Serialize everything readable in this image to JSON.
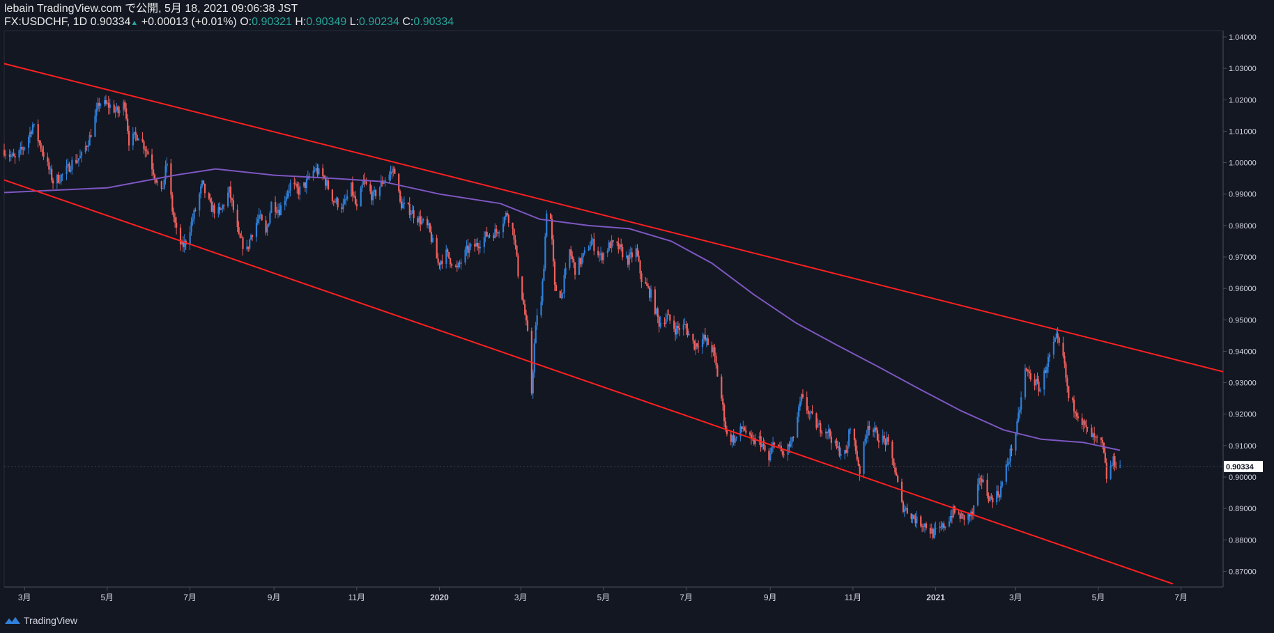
{
  "header": {
    "publish_line": "lebain TradingView.com で公開, 5月 18, 2021 09:06:38 JST",
    "symbol": "FX:USDCHF, 1D",
    "last": "0.90334",
    "change": "+0.00013 (+0.01%)",
    "o_label": "O:",
    "o_value": "0.90321",
    "h_label": "H:",
    "h_value": "0.90349",
    "l_label": "L:",
    "l_value": "0.90234",
    "c_label": "C:",
    "c_value": "0.90334"
  },
  "footer": {
    "brand": "TradingView"
  },
  "colors": {
    "background": "#131722",
    "up": "#2f80d8",
    "down": "#f0605c",
    "trendline": "#ff2020",
    "ma": "#7e57c2",
    "axis_text": "#d1d4dc"
  },
  "chart_data": {
    "type": "candlestick",
    "symbol": "FX:USDCHF",
    "timeframe": "1D",
    "x_domain": [
      "2019-02-14",
      "2021-08-01"
    ],
    "ylim": [
      0.865,
      1.042
    ],
    "y_ticks": [
      1.04,
      1.03,
      1.02,
      1.01,
      1.0,
      0.99,
      0.98,
      0.97,
      0.96,
      0.95,
      0.94,
      0.93,
      0.92,
      0.91,
      0.9,
      0.89,
      0.88,
      0.87
    ],
    "y_tick_labels": [
      "1.04000",
      "1.03000",
      "1.02000",
      "1.01000",
      "1.00000",
      "0.99000",
      "0.98000",
      "0.97000",
      "0.96000",
      "0.95000",
      "0.94000",
      "0.93000",
      "0.92000",
      "0.91000",
      "0.90000",
      "0.89000",
      "0.88000",
      "0.87000"
    ],
    "x_ticks": [
      {
        "label": "3月",
        "date": "2019-03-01"
      },
      {
        "label": "5月",
        "date": "2019-05-01"
      },
      {
        "label": "7月",
        "date": "2019-07-01"
      },
      {
        "label": "9月",
        "date": "2019-09-01"
      },
      {
        "label": "11月",
        "date": "2019-11-01"
      },
      {
        "label": "2020",
        "date": "2020-01-01"
      },
      {
        "label": "3月",
        "date": "2020-03-01"
      },
      {
        "label": "5月",
        "date": "2020-05-01"
      },
      {
        "label": "7月",
        "date": "2020-07-01"
      },
      {
        "label": "9月",
        "date": "2020-09-01"
      },
      {
        "label": "11月",
        "date": "2020-11-01"
      },
      {
        "label": "2021",
        "date": "2021-01-01"
      },
      {
        "label": "3月",
        "date": "2021-03-01"
      },
      {
        "label": "5月",
        "date": "2021-05-01"
      },
      {
        "label": "7月",
        "date": "2021-07-01"
      }
    ],
    "last_price_label": "0.90334",
    "last_price": 0.90334,
    "close_path": [
      [
        "2019-02-14",
        1.004
      ],
      [
        "2019-02-22",
        1.001
      ],
      [
        "2019-03-02",
        1.006
      ],
      [
        "2019-03-07",
        1.012
      ],
      [
        "2019-03-14",
        1.004
      ],
      [
        "2019-03-22",
        0.994
      ],
      [
        "2019-03-29",
        0.996
      ],
      [
        "2019-04-05",
        1.0
      ],
      [
        "2019-04-12",
        1.002
      ],
      [
        "2019-04-18",
        1.008
      ],
      [
        "2019-04-25",
        1.019
      ],
      [
        "2019-05-03",
        1.018
      ],
      [
        "2019-05-09",
        1.016
      ],
      [
        "2019-05-14",
        1.019
      ],
      [
        "2019-05-17",
        1.007
      ],
      [
        "2019-05-24",
        1.009
      ],
      [
        "2019-05-31",
        1.003
      ],
      [
        "2019-06-05",
        0.996
      ],
      [
        "2019-06-10",
        0.99
      ],
      [
        "2019-06-14",
        1.0
      ],
      [
        "2019-06-18",
        0.985
      ],
      [
        "2019-06-21",
        0.978
      ],
      [
        "2019-06-25",
        0.973
      ],
      [
        "2019-06-28",
        0.975
      ],
      [
        "2019-07-05",
        0.985
      ],
      [
        "2019-07-10",
        0.993
      ],
      [
        "2019-07-16",
        0.986
      ],
      [
        "2019-07-23",
        0.984
      ],
      [
        "2019-07-30",
        0.991
      ],
      [
        "2019-08-02",
        0.985
      ],
      [
        "2019-08-06",
        0.976
      ],
      [
        "2019-08-12",
        0.972
      ],
      [
        "2019-08-15",
        0.977
      ],
      [
        "2019-08-21",
        0.983
      ],
      [
        "2019-08-26",
        0.977
      ],
      [
        "2019-08-30",
        0.987
      ],
      [
        "2019-09-05",
        0.985
      ],
      [
        "2019-09-13",
        0.993
      ],
      [
        "2019-09-19",
        0.991
      ],
      [
        "2019-09-24",
        0.993
      ],
      [
        "2019-10-01",
        0.998
      ],
      [
        "2019-10-08",
        0.995
      ],
      [
        "2019-10-15",
        0.988
      ],
      [
        "2019-10-22",
        0.986
      ],
      [
        "2019-10-28",
        0.992
      ],
      [
        "2019-11-01",
        0.985
      ],
      [
        "2019-11-06",
        0.994
      ],
      [
        "2019-11-13",
        0.989
      ],
      [
        "2019-11-20",
        0.994
      ],
      [
        "2019-11-29",
        0.998
      ],
      [
        "2019-12-03",
        0.987
      ],
      [
        "2019-12-10",
        0.985
      ],
      [
        "2019-12-17",
        0.982
      ],
      [
        "2019-12-24",
        0.979
      ],
      [
        "2019-12-31",
        0.968
      ],
      [
        "2020-01-06",
        0.971
      ],
      [
        "2020-01-14",
        0.966
      ],
      [
        "2020-01-21",
        0.972
      ],
      [
        "2020-01-29",
        0.974
      ],
      [
        "2020-02-05",
        0.977
      ],
      [
        "2020-02-12",
        0.978
      ],
      [
        "2020-02-20",
        0.984
      ],
      [
        "2020-02-25",
        0.977
      ],
      [
        "2020-02-28",
        0.965
      ],
      [
        "2020-03-03",
        0.955
      ],
      [
        "2020-03-06",
        0.945
      ],
      [
        "2020-03-09",
        0.927
      ],
      [
        "2020-03-11",
        0.942
      ],
      [
        "2020-03-13",
        0.952
      ],
      [
        "2020-03-16",
        0.955
      ],
      [
        "2020-03-18",
        0.968
      ],
      [
        "2020-03-20",
        0.985
      ],
      [
        "2020-03-23",
        0.982
      ],
      [
        "2020-03-26",
        0.96
      ],
      [
        "2020-03-31",
        0.958
      ],
      [
        "2020-04-06",
        0.972
      ],
      [
        "2020-04-10",
        0.966
      ],
      [
        "2020-04-16",
        0.97
      ],
      [
        "2020-04-22",
        0.975
      ],
      [
        "2020-04-29",
        0.97
      ],
      [
        "2020-05-06",
        0.974
      ],
      [
        "2020-05-12",
        0.973
      ],
      [
        "2020-05-19",
        0.969
      ],
      [
        "2020-05-25",
        0.972
      ],
      [
        "2020-05-29",
        0.963
      ],
      [
        "2020-06-05",
        0.958
      ],
      [
        "2020-06-11",
        0.949
      ],
      [
        "2020-06-17",
        0.951
      ],
      [
        "2020-06-23",
        0.947
      ],
      [
        "2020-06-30",
        0.948
      ],
      [
        "2020-07-07",
        0.942
      ],
      [
        "2020-07-14",
        0.944
      ],
      [
        "2020-07-21",
        0.94
      ],
      [
        "2020-07-27",
        0.925
      ],
      [
        "2020-07-31",
        0.913
      ],
      [
        "2020-08-06",
        0.912
      ],
      [
        "2020-08-12",
        0.916
      ],
      [
        "2020-08-18",
        0.911
      ],
      [
        "2020-08-24",
        0.912
      ],
      [
        "2020-08-31",
        0.905
      ],
      [
        "2020-09-04",
        0.912
      ],
      [
        "2020-09-10",
        0.907
      ],
      [
        "2020-09-17",
        0.911
      ],
      [
        "2020-09-24",
        0.925
      ],
      [
        "2020-09-30",
        0.92
      ],
      [
        "2020-10-06",
        0.916
      ],
      [
        "2020-10-13",
        0.915
      ],
      [
        "2020-10-20",
        0.909
      ],
      [
        "2020-10-27",
        0.907
      ],
      [
        "2020-10-30",
        0.917
      ],
      [
        "2020-11-06",
        0.902
      ],
      [
        "2020-11-12",
        0.917
      ],
      [
        "2020-11-19",
        0.913
      ],
      [
        "2020-11-26",
        0.911
      ],
      [
        "2020-12-01",
        0.904
      ],
      [
        "2020-12-07",
        0.891
      ],
      [
        "2020-12-14",
        0.888
      ],
      [
        "2020-12-18",
        0.886
      ],
      [
        "2020-12-24",
        0.885
      ],
      [
        "2020-12-30",
        0.882
      ],
      [
        "2021-01-04",
        0.883
      ],
      [
        "2021-01-08",
        0.885
      ],
      [
        "2021-01-14",
        0.889
      ],
      [
        "2021-01-21",
        0.887
      ],
      [
        "2021-01-28",
        0.888
      ],
      [
        "2021-02-03",
        0.9
      ],
      [
        "2021-02-10",
        0.893
      ],
      [
        "2021-02-17",
        0.895
      ],
      [
        "2021-02-24",
        0.906
      ],
      [
        "2021-03-02",
        0.916
      ],
      [
        "2021-03-08",
        0.934
      ],
      [
        "2021-03-12",
        0.932
      ],
      [
        "2021-03-19",
        0.928
      ],
      [
        "2021-03-24",
        0.936
      ],
      [
        "2021-03-31",
        0.944
      ],
      [
        "2021-04-05",
        0.938
      ],
      [
        "2021-04-09",
        0.925
      ],
      [
        "2021-04-15",
        0.921
      ],
      [
        "2021-04-22",
        0.915
      ],
      [
        "2021-04-28",
        0.912
      ],
      [
        "2021-05-04",
        0.91
      ],
      [
        "2021-05-07",
        0.9
      ],
      [
        "2021-05-12",
        0.905
      ],
      [
        "2021-05-17",
        0.9033
      ]
    ],
    "moving_average": [
      [
        "2019-02-14",
        0.9905
      ],
      [
        "2019-05-01",
        0.992
      ],
      [
        "2019-06-20",
        0.996
      ],
      [
        "2019-07-20",
        0.998
      ],
      [
        "2019-09-01",
        0.996
      ],
      [
        "2019-10-15",
        0.995
      ],
      [
        "2019-11-20",
        0.994
      ],
      [
        "2020-01-01",
        0.99
      ],
      [
        "2020-02-15",
        0.987
      ],
      [
        "2020-03-15",
        0.982
      ],
      [
        "2020-04-20",
        0.98
      ],
      [
        "2020-05-20",
        0.979
      ],
      [
        "2020-06-20",
        0.975
      ],
      [
        "2020-07-20",
        0.968
      ],
      [
        "2020-08-20",
        0.958
      ],
      [
        "2020-09-20",
        0.949
      ],
      [
        "2020-10-20",
        0.942
      ],
      [
        "2020-11-20",
        0.935
      ],
      [
        "2020-12-20",
        0.928
      ],
      [
        "2021-01-20",
        0.921
      ],
      [
        "2021-02-20",
        0.915
      ],
      [
        "2021-03-20",
        0.912
      ],
      [
        "2021-04-20",
        0.911
      ],
      [
        "2021-05-17",
        0.9085
      ]
    ],
    "trendlines": [
      {
        "name": "upper channel",
        "from": [
          "2019-02-14",
          1.0315
        ],
        "to": [
          "2021-08-01",
          0.9335
        ]
      },
      {
        "name": "lower channel",
        "from": [
          "2019-02-14",
          0.9945
        ],
        "to": [
          "2021-06-25",
          0.866
        ]
      }
    ]
  }
}
